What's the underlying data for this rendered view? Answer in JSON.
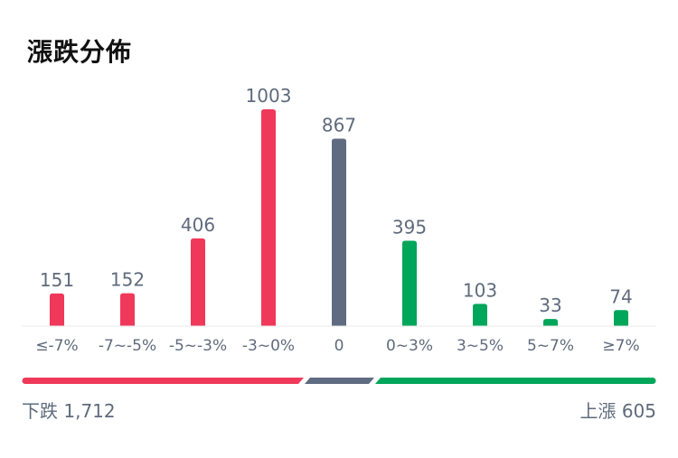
{
  "title": "漲跌分佈",
  "colors": {
    "down": "#f0385a",
    "flat": "#5f6b80",
    "up": "#00a65a",
    "label": "#5f6b7c",
    "baseline": "#e8e8e8"
  },
  "chart_data": {
    "type": "bar",
    "categories": [
      "≤-7%",
      "-7~-5%",
      "-5~-3%",
      "-3~0%",
      "0",
      "0~3%",
      "3~5%",
      "5~7%",
      "≥7%"
    ],
    "values": [
      151,
      152,
      406,
      1003,
      867,
      395,
      103,
      33,
      74
    ],
    "groups": [
      "down",
      "down",
      "down",
      "down",
      "flat",
      "up",
      "up",
      "up",
      "up"
    ],
    "ylim": [
      0,
      1003
    ]
  },
  "summary": {
    "down_label": "下跌 1,712",
    "up_label": "上漲 605"
  }
}
